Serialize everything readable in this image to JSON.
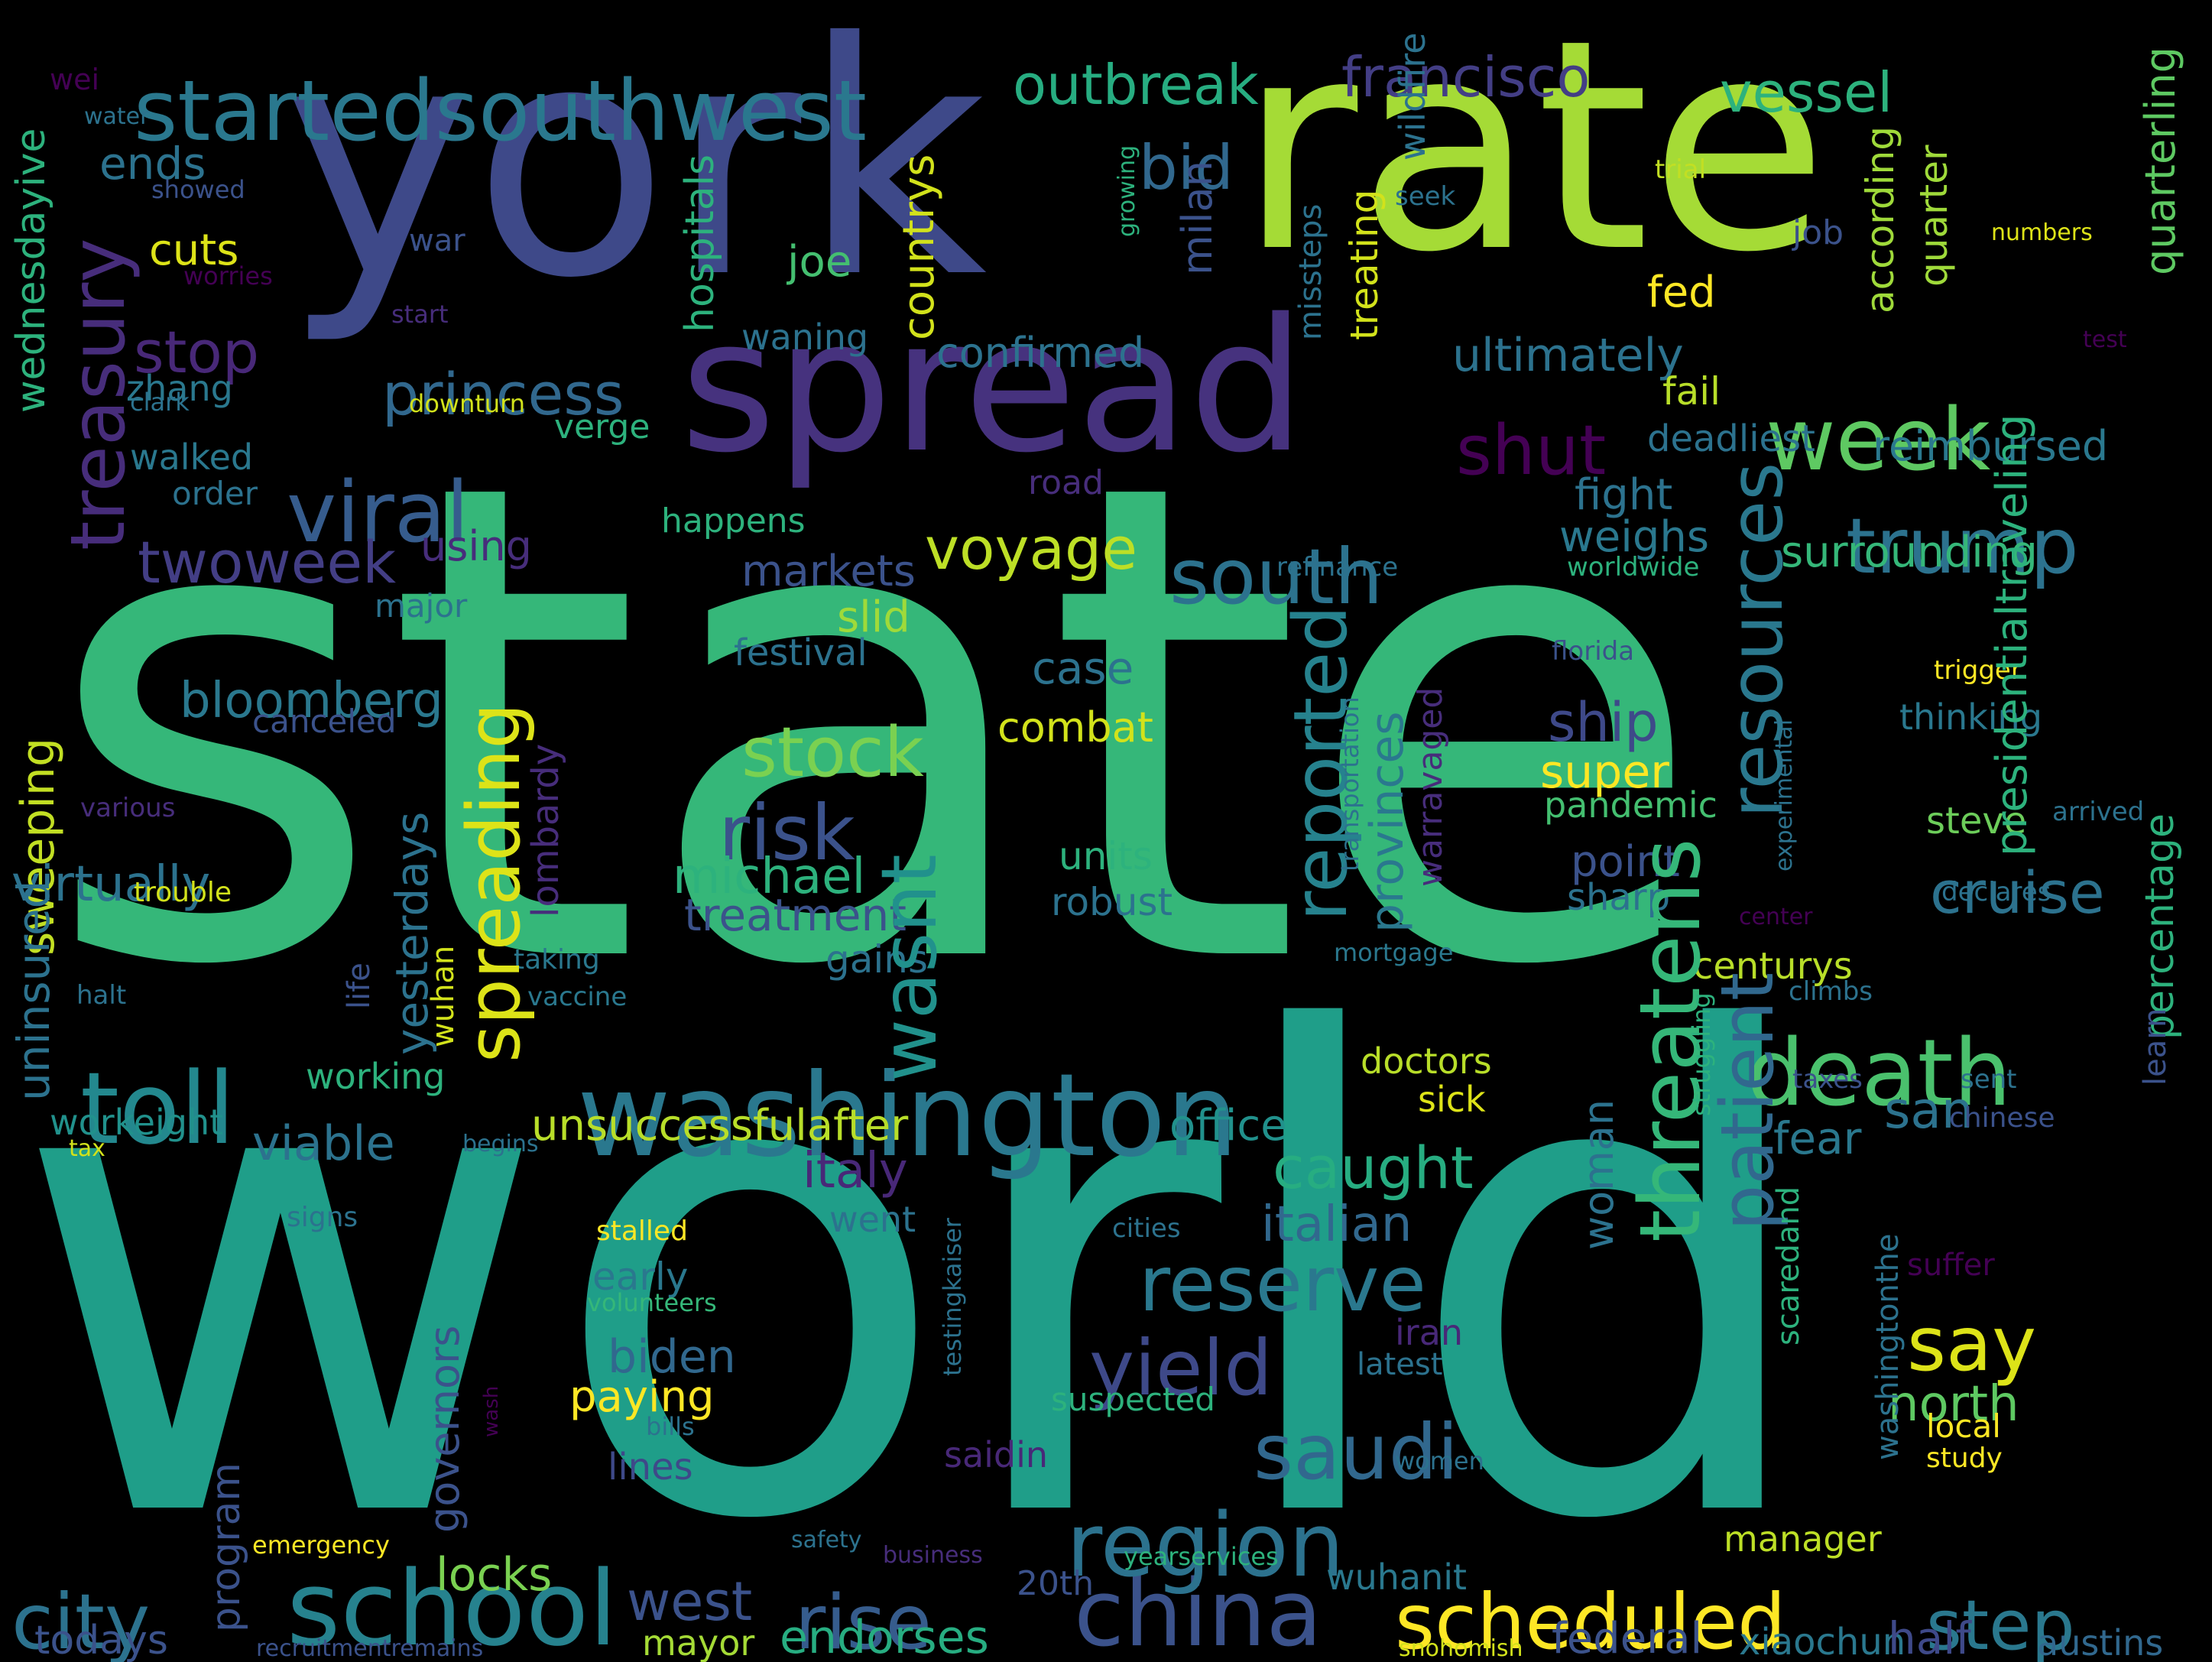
{
  "palette": {
    "background": "#000000",
    "dark_purple": "#440154",
    "purple": "#472d7b",
    "indigo": "#3b528b",
    "blue": "#2c728e",
    "teal": "#21918c",
    "green_teal": "#28ae80",
    "green": "#5ec962",
    "lime": "#addc30",
    "yellow": "#fde725"
  },
  "words": [
    {
      "text": "state",
      "color": "#35b779"
    },
    {
      "text": "world",
      "color": "#1f9e89"
    },
    {
      "text": "york",
      "color": "#3e4989"
    },
    {
      "text": "rate",
      "color": "#a5db36"
    },
    {
      "text": "spread",
      "color": "#46327e"
    },
    {
      "text": "startedsouthwest",
      "color": "#2a788e"
    },
    {
      "text": "outbreak",
      "color": "#27ad81"
    },
    {
      "text": "francisco",
      "color": "#433e85"
    },
    {
      "text": "vessel",
      "color": "#2db27d"
    },
    {
      "text": "week",
      "color": "#5ec962"
    },
    {
      "text": "viral",
      "color": "#365c8d"
    },
    {
      "text": "trump",
      "color": "#2c728e"
    },
    {
      "text": "shut",
      "color": "#440154"
    },
    {
      "text": "washington",
      "color": "#2a788e"
    },
    {
      "text": "toll",
      "color": "#23888e"
    },
    {
      "text": "death",
      "color": "#4ac16d"
    },
    {
      "text": "school",
      "color": "#26828e"
    },
    {
      "text": "china",
      "color": "#3b528b"
    },
    {
      "text": "scheduled",
      "color": "#fde725"
    },
    {
      "text": "region",
      "color": "#2c728e"
    },
    {
      "text": "stock",
      "color": "#7ad151"
    },
    {
      "text": "risk",
      "color": "#3b528b"
    },
    {
      "text": "rise",
      "color": "#365c8d"
    },
    {
      "text": "step",
      "color": "#2a788e"
    },
    {
      "text": "city",
      "color": "#2c728e"
    },
    {
      "text": "south",
      "color": "#2c728e"
    },
    {
      "text": "saudi",
      "color": "#31688e"
    },
    {
      "text": "say",
      "color": "#dde318"
    },
    {
      "text": "yield",
      "color": "#3e4989"
    },
    {
      "text": "reserve",
      "color": "#2a788e"
    },
    {
      "text": "princess",
      "color": "#31688e"
    },
    {
      "text": "voyage",
      "color": "#bddf26"
    },
    {
      "text": "twoweek",
      "color": "#433e85"
    },
    {
      "text": "stop",
      "color": "#482878"
    },
    {
      "text": "cruise",
      "color": "#2c728e"
    },
    {
      "text": "caught",
      "color": "#27ad81"
    },
    {
      "text": "west",
      "color": "#3b528b"
    },
    {
      "text": "unsuccessfulafter",
      "color": "#b8de29"
    },
    {
      "text": "bloomberg",
      "color": "#2a788e"
    },
    {
      "text": "michael",
      "color": "#2db27d"
    },
    {
      "text": "treatment",
      "color": "#3b528b"
    },
    {
      "text": "italian",
      "color": "#31688e"
    },
    {
      "text": "italy",
      "color": "#482878"
    },
    {
      "text": "office",
      "color": "#21918c"
    },
    {
      "text": "viable",
      "color": "#2c728e"
    },
    {
      "text": "virtually",
      "color": "#2c728e"
    },
    {
      "text": "super",
      "color": "#fde725"
    },
    {
      "text": "ship",
      "color": "#3e4989"
    },
    {
      "text": "north",
      "color": "#5ec962"
    },
    {
      "text": "san",
      "color": "#2c728e"
    },
    {
      "text": "fear",
      "color": "#2a788e"
    },
    {
      "text": "endorses",
      "color": "#27ad81"
    },
    {
      "text": "federal",
      "color": "#3b528b"
    },
    {
      "text": "xiaochun",
      "color": "#2a788e"
    },
    {
      "text": "austins",
      "color": "#31688e"
    },
    {
      "text": "half",
      "color": "#3e4989"
    },
    {
      "text": "todays",
      "color": "#3b528b"
    },
    {
      "text": "mayor",
      "color": "#a5db36"
    },
    {
      "text": "locks",
      "color": "#7ad151"
    },
    {
      "text": "paying",
      "color": "#fde725"
    },
    {
      "text": "biden",
      "color": "#31688e"
    },
    {
      "text": "early",
      "color": "#2a788e"
    },
    {
      "text": "lines",
      "color": "#3e4989"
    },
    {
      "text": "wuhanit",
      "color": "#2a788e"
    },
    {
      "text": "manager",
      "color": "#bddf26"
    },
    {
      "text": "combat",
      "color": "#d2e21b"
    },
    {
      "text": "case",
      "color": "#2c728e"
    },
    {
      "text": "markets",
      "color": "#3b528b"
    },
    {
      "text": "slid",
      "color": "#9fda3a"
    },
    {
      "text": "festival",
      "color": "#2c728e"
    },
    {
      "text": "units",
      "color": "#2db27d"
    },
    {
      "text": "robust",
      "color": "#2c728e"
    },
    {
      "text": "gains",
      "color": "#2c728e"
    },
    {
      "text": "confirmed",
      "color": "#2c728e"
    },
    {
      "text": "waning",
      "color": "#2c728e"
    },
    {
      "text": "joe",
      "color": "#44bf70"
    },
    {
      "text": "bid",
      "color": "#31688e"
    },
    {
      "text": "cuts",
      "color": "#dde318"
    },
    {
      "text": "ends",
      "color": "#2c728e"
    },
    {
      "text": "ultimately",
      "color": "#2c728e"
    },
    {
      "text": "fed",
      "color": "#fde725"
    },
    {
      "text": "fail",
      "color": "#b8de29"
    },
    {
      "text": "deadliest",
      "color": "#2c728e"
    },
    {
      "text": "reimbursed",
      "color": "#2a788e"
    },
    {
      "text": "fight",
      "color": "#2c728e"
    },
    {
      "text": "weighs",
      "color": "#2a788e"
    },
    {
      "text": "surrounding",
      "color": "#35b779"
    },
    {
      "text": "thinking",
      "color": "#2a788e"
    },
    {
      "text": "steve",
      "color": "#6ccd5a"
    },
    {
      "text": "pandemic",
      "color": "#44bf70"
    },
    {
      "text": "point",
      "color": "#3b528b"
    },
    {
      "text": "sharp",
      "color": "#2c728e"
    },
    {
      "text": "centurys",
      "color": "#b8de29"
    },
    {
      "text": "doctors",
      "color": "#b8de29"
    },
    {
      "text": "sick",
      "color": "#dde318"
    },
    {
      "text": "working",
      "color": "#2db27d"
    },
    {
      "text": "workeight",
      "color": "#21918c"
    },
    {
      "text": "using",
      "color": "#472d7b"
    },
    {
      "text": "walked",
      "color": "#2a788e"
    },
    {
      "text": "order",
      "color": "#2c728e"
    },
    {
      "text": "happens",
      "color": "#2db27d"
    },
    {
      "text": "road",
      "color": "#472d7b"
    },
    {
      "text": "zhang",
      "color": "#2a788e"
    },
    {
      "text": "major",
      "color": "#2c728e"
    },
    {
      "text": "canceled",
      "color": "#3b528b"
    },
    {
      "text": "job",
      "color": "#3b528b"
    },
    {
      "text": "verge",
      "color": "#2db27d"
    },
    {
      "text": "downturn",
      "color": "#d2e21b"
    },
    {
      "text": "clark",
      "color": "#2c728e"
    },
    {
      "text": "start",
      "color": "#472d7b"
    },
    {
      "text": "worries",
      "color": "#440154"
    },
    {
      "text": "showed",
      "color": "#3b528b"
    },
    {
      "text": "war",
      "color": "#3b528b"
    },
    {
      "text": "water",
      "color": "#2c728e"
    },
    {
      "text": "wei",
      "color": "#440154"
    },
    {
      "text": "trial",
      "color": "#c2df23"
    },
    {
      "text": "seek",
      "color": "#2c728e"
    },
    {
      "text": "numbers",
      "color": "#dde318"
    },
    {
      "text": "test",
      "color": "#440154"
    },
    {
      "text": "worldwide",
      "color": "#2db27d"
    },
    {
      "text": "refinance",
      "color": "#2c728e"
    },
    {
      "text": "florida",
      "color": "#3b528b"
    },
    {
      "text": "trigger",
      "color": "#fde725"
    },
    {
      "text": "arrived",
      "color": "#2c728e"
    },
    {
      "text": "declares",
      "color": "#2c728e"
    },
    {
      "text": "center",
      "color": "#440154"
    },
    {
      "text": "climbs",
      "color": "#2c728e"
    },
    {
      "text": "taxes",
      "color": "#3b528b"
    },
    {
      "text": "sent",
      "color": "#2c728e"
    },
    {
      "text": "chinese",
      "color": "#3b528b"
    },
    {
      "text": "mortgage",
      "color": "#2a788e"
    },
    {
      "text": "taking",
      "color": "#2a788e"
    },
    {
      "text": "vaccine",
      "color": "#2a788e"
    },
    {
      "text": "halt",
      "color": "#2c728e"
    },
    {
      "text": "trouble",
      "color": "#d2e21b"
    },
    {
      "text": "various",
      "color": "#472d7b"
    },
    {
      "text": "tax",
      "color": "#d2e21b"
    },
    {
      "text": "begins",
      "color": "#2c728e"
    },
    {
      "text": "signs",
      "color": "#2c728e"
    },
    {
      "text": "went",
      "color": "#2c728e"
    },
    {
      "text": "stalled",
      "color": "#fde725"
    },
    {
      "text": "volunteers",
      "color": "#35b779"
    },
    {
      "text": "cities",
      "color": "#2c728e"
    },
    {
      "text": "suffer",
      "color": "#440154"
    },
    {
      "text": "iran",
      "color": "#482878"
    },
    {
      "text": "latest",
      "color": "#2c728e"
    },
    {
      "text": "suspected",
      "color": "#2db27d"
    },
    {
      "text": "saidin",
      "color": "#482878"
    },
    {
      "text": "local",
      "color": "#fde725"
    },
    {
      "text": "study",
      "color": "#fde725"
    },
    {
      "text": "women",
      "color": "#2c728e"
    },
    {
      "text": "bills",
      "color": "#2c728e"
    },
    {
      "text": "emergency",
      "color": "#fde725"
    },
    {
      "text": "safety",
      "color": "#2c728e"
    },
    {
      "text": "business",
      "color": "#472d7b"
    },
    {
      "text": "20th",
      "color": "#3b528b"
    },
    {
      "text": "yearservices",
      "color": "#2db27d"
    },
    {
      "text": "recruitmentremains",
      "color": "#3b528b"
    },
    {
      "text": "snohomish",
      "color": "#d2e21b"
    },
    {
      "text": "wash",
      "color": "#440154"
    },
    {
      "text": "growing",
      "color": "#2db27d"
    },
    {
      "text": "treasury",
      "color": "#472d7b"
    },
    {
      "text": "wednesdayive",
      "color": "#2db27d"
    },
    {
      "text": "hospitals",
      "color": "#2db27d"
    },
    {
      "text": "countrys",
      "color": "#d2e21b"
    },
    {
      "text": "milan",
      "color": "#3b528b"
    },
    {
      "text": "missteps",
      "color": "#2c728e"
    },
    {
      "text": "treating",
      "color": "#d2e21b"
    },
    {
      "text": "wildfire",
      "color": "#2c728e"
    },
    {
      "text": "spreading",
      "color": "#dde318"
    },
    {
      "text": "wasnt",
      "color": "#21918c"
    },
    {
      "text": "reported",
      "color": "#26828e"
    },
    {
      "text": "resources",
      "color": "#2a788e"
    },
    {
      "text": "threatens",
      "color": "#35b779"
    },
    {
      "text": "patient",
      "color": "#31688e"
    },
    {
      "text": "provinces",
      "color": "#2a788e"
    },
    {
      "text": "yesterdays",
      "color": "#2c728e"
    },
    {
      "text": "lombardy",
      "color": "#472d7b"
    },
    {
      "text": "sweeping",
      "color": "#c2df23"
    },
    {
      "text": "uninsured",
      "color": "#2c728e"
    },
    {
      "text": "governors",
      "color": "#3b528b"
    },
    {
      "text": "program",
      "color": "#3b528b"
    },
    {
      "text": "life",
      "color": "#3b528b"
    },
    {
      "text": "wuhan",
      "color": "#d2e21b"
    },
    {
      "text": "warravaged",
      "color": "#472d7b"
    },
    {
      "text": "transportation",
      "color": "#2c728e"
    },
    {
      "text": "experimental",
      "color": "#2c728e"
    },
    {
      "text": "struggling",
      "color": "#2db27d"
    },
    {
      "text": "woman",
      "color": "#2c728e"
    },
    {
      "text": "scaredand",
      "color": "#2db27d"
    },
    {
      "text": "washingtonthe",
      "color": "#2c728e"
    },
    {
      "text": "testingkaiser",
      "color": "#2c728e"
    },
    {
      "text": "according",
      "color": "#9fda3a"
    },
    {
      "text": "quarter",
      "color": "#9fda3a"
    },
    {
      "text": "presidentialtraveling",
      "color": "#2db27d"
    },
    {
      "text": "quarterling",
      "color": "#5ec962"
    },
    {
      "text": "percentage",
      "color": "#2db27d"
    },
    {
      "text": "learn",
      "color": "#3b528b"
    }
  ]
}
